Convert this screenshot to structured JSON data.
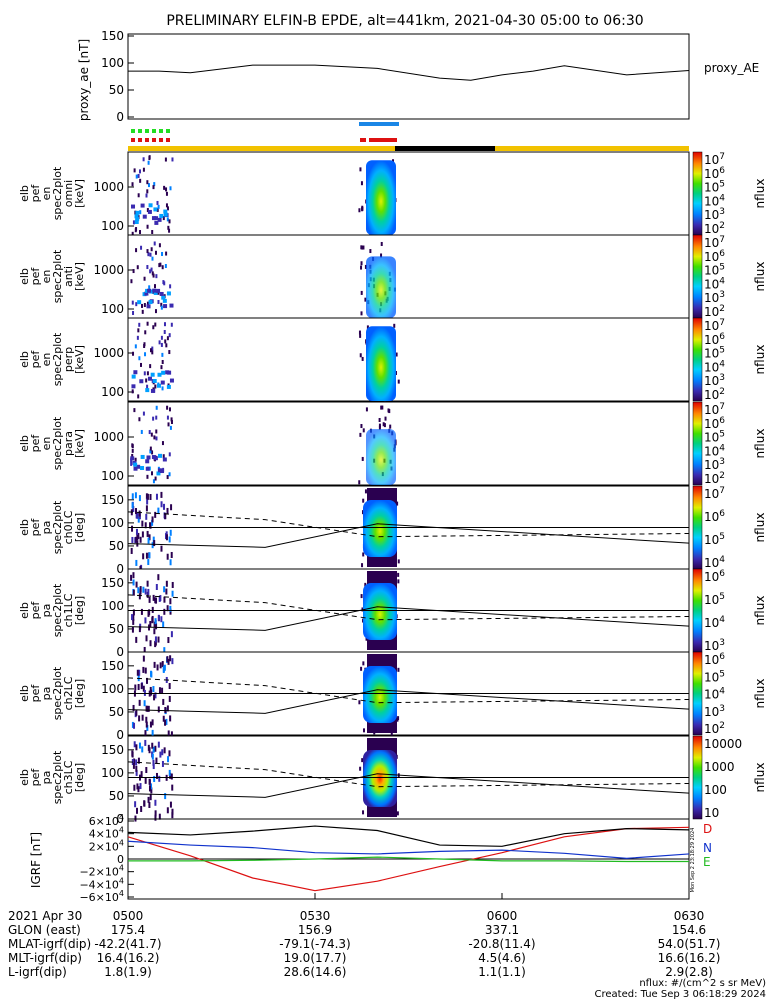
{
  "title": "PRELIMINARY ELFIN-B EPDE, alt=441km, 2021-04-30 05:00 to 06:30",
  "colors": {
    "background": "#ffffff",
    "axes": "#000000",
    "status_yellow": "#f2c200",
    "status_black": "#000000",
    "marker_blue": "#1a86e6",
    "marker_red": "#dd1111",
    "marker_green": "#22dd22",
    "trace_D": "#dd1111",
    "trace_N": "#1133cc",
    "trace_E": "#22bb22",
    "trace_mag": "#000000"
  },
  "chart_data": [
    {
      "type": "line",
      "panel": "proxy_ae",
      "ylabel": "proxy_ae [nT]",
      "legend": "proxy_AE",
      "yticks": [
        "150",
        "100",
        "50",
        "0"
      ],
      "ylim": [
        0,
        150
      ],
      "x_minutes": [
        0,
        5,
        10,
        20,
        30,
        40,
        50,
        55,
        60,
        65,
        70,
        80,
        90
      ],
      "values": [
        85,
        85,
        82,
        96,
        96,
        90,
        72,
        68,
        78,
        85,
        95,
        78,
        86
      ]
    },
    {
      "type": "heatmap",
      "panel": "spectrogram_energy_omni",
      "ylabel": "elb pef en spec2plot omni [keV]",
      "yscale": "log",
      "yticks": [
        "1000",
        "100"
      ],
      "colorbar_title": "nflux",
      "colorbar_ticks": [
        "10^7",
        "10^6",
        "10^5",
        "10^4",
        "10^3",
        "10^2"
      ]
    },
    {
      "type": "heatmap",
      "panel": "spectrogram_energy_anti",
      "ylabel": "elb pef en spec2plot anti [keV]",
      "yscale": "log",
      "yticks": [
        "1000",
        "100"
      ],
      "colorbar_title": "nflux",
      "colorbar_ticks": [
        "10^7",
        "10^6",
        "10^5",
        "10^4",
        "10^3",
        "10^2"
      ]
    },
    {
      "type": "heatmap",
      "panel": "spectrogram_energy_perp",
      "ylabel": "elb pef en spec2plot perp [keV]",
      "yscale": "log",
      "yticks": [
        "1000",
        "100"
      ],
      "colorbar_title": "nflux",
      "colorbar_ticks": [
        "10^7",
        "10^6",
        "10^5",
        "10^4",
        "10^3",
        "10^2"
      ]
    },
    {
      "type": "heatmap",
      "panel": "spectrogram_energy_para",
      "ylabel": "elb pef en spec2plot para [keV]",
      "yscale": "log",
      "yticks": [
        "1000",
        "100"
      ],
      "colorbar_title": "nflux",
      "colorbar_ticks": [
        "10^7",
        "10^6",
        "10^5",
        "10^4",
        "10^3",
        "10^2"
      ]
    },
    {
      "type": "heatmap",
      "panel": "spectrogram_pa_ch0",
      "ylabel": "elb pef pa spec2plot ch0LC [deg]",
      "yticks": [
        "150",
        "100",
        "50",
        "0"
      ],
      "ylim": [
        0,
        180
      ],
      "colorbar_title": "nflux",
      "colorbar_ticks": [
        "10^7",
        "10^6",
        "10^5",
        "10^4"
      ]
    },
    {
      "type": "heatmap",
      "panel": "spectrogram_pa_ch1",
      "ylabel": "elb pef pa spec2plot ch1LC [deg]",
      "yticks": [
        "150",
        "100",
        "50",
        "0"
      ],
      "ylim": [
        0,
        180
      ],
      "colorbar_title": "nflux",
      "colorbar_ticks": [
        "10^6",
        "10^5",
        "10^4",
        "10^3"
      ]
    },
    {
      "type": "heatmap",
      "panel": "spectrogram_pa_ch2",
      "ylabel": "elb pef pa spec2plot ch2LC [deg]",
      "yticks": [
        "150",
        "100",
        "50",
        "0"
      ],
      "ylim": [
        0,
        180
      ],
      "colorbar_title": "nflux",
      "colorbar_ticks": [
        "10^6",
        "10^5",
        "10^4",
        "10^3",
        "10^2"
      ]
    },
    {
      "type": "heatmap",
      "panel": "spectrogram_pa_ch3",
      "ylabel": "elb pef pa spec2plot ch3LC [deg]",
      "yticks": [
        "150",
        "100",
        "50",
        "0"
      ],
      "ylim": [
        0,
        180
      ],
      "colorbar_title": "nflux",
      "colorbar_ticks": [
        "10000",
        "1000",
        "100",
        "10"
      ]
    },
    {
      "type": "line",
      "panel": "igrf",
      "ylabel": "IGRF [nT]",
      "yticks": [
        "6×10^4",
        "4×10^4",
        "2×10^4",
        "0",
        "−2×10^4",
        "−4×10^4",
        "−6×10^4"
      ],
      "ylim": [
        -60000,
        60000
      ],
      "legend": [
        "D",
        "N",
        "E"
      ],
      "x_minutes": [
        0,
        10,
        20,
        30,
        40,
        50,
        60,
        70,
        80,
        90
      ],
      "series": [
        {
          "name": "D",
          "values": [
            35000,
            5000,
            -30000,
            -50000,
            -35000,
            -12000,
            10000,
            35000,
            48000,
            50000
          ]
        },
        {
          "name": "N",
          "values": [
            28000,
            22000,
            18000,
            10000,
            8000,
            12000,
            14000,
            9000,
            1000,
            8000
          ]
        },
        {
          "name": "E",
          "values": [
            -3000,
            -3000,
            -2000,
            0,
            3000,
            0,
            -3000,
            -3000,
            -4000,
            -4000
          ]
        },
        {
          "values": [
            42000,
            38000,
            44000,
            52000,
            45000,
            22000,
            20000,
            40000,
            48000,
            46000
          ]
        }
      ]
    }
  ],
  "xaxis": {
    "row_labels": [
      "2021 Apr 30",
      "GLON (east)",
      "MLAT-igrf(dip)",
      "MLT-igrf(dip)",
      "L-igrf(dip)"
    ],
    "columns": [
      {
        "values": [
          "0500",
          "175.4",
          "-42.2(41.7)",
          "16.4(16.2)",
          "1.8(1.9)"
        ]
      },
      {
        "values": [
          "0530",
          "156.9",
          "-79.1(-74.3)",
          "19.0(17.7)",
          "28.6(14.6)"
        ]
      },
      {
        "values": [
          "0600",
          "337.1",
          "-20.8(11.4)",
          "4.5(4.6)",
          "1.1(1.1)"
        ]
      },
      {
        "values": [
          "0630",
          "154.6",
          "54.0(51.7)",
          "16.6(16.2)",
          "2.9(2.8)"
        ]
      }
    ]
  },
  "footer": {
    "units": "nflux: #/(cm^2 s sr MeV)",
    "created": "Created: Tue Sep  3 06:18:29 2024"
  },
  "side_stamp": "Mon Sep  2 23:18:29 2024"
}
